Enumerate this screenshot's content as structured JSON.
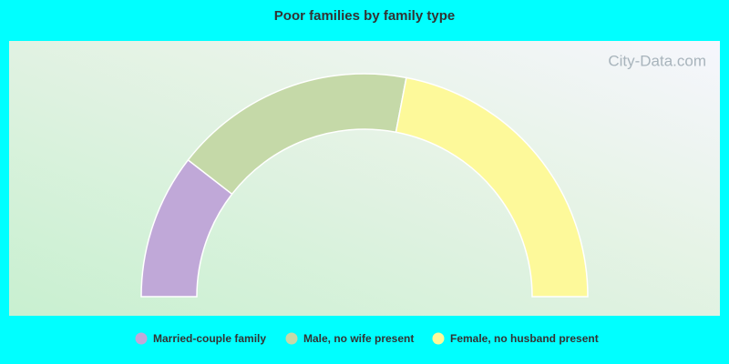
{
  "chart_data": {
    "type": "half-donut",
    "title": "Poor families by family type",
    "categories": [
      "Married-couple family",
      "Male, no wife present",
      "Female, no husband present"
    ],
    "values": [
      21,
      35,
      44
    ],
    "colors": [
      "#c0a8d8",
      "#c5d9a8",
      "#fdf99a"
    ]
  },
  "watermark": "City-Data.com"
}
